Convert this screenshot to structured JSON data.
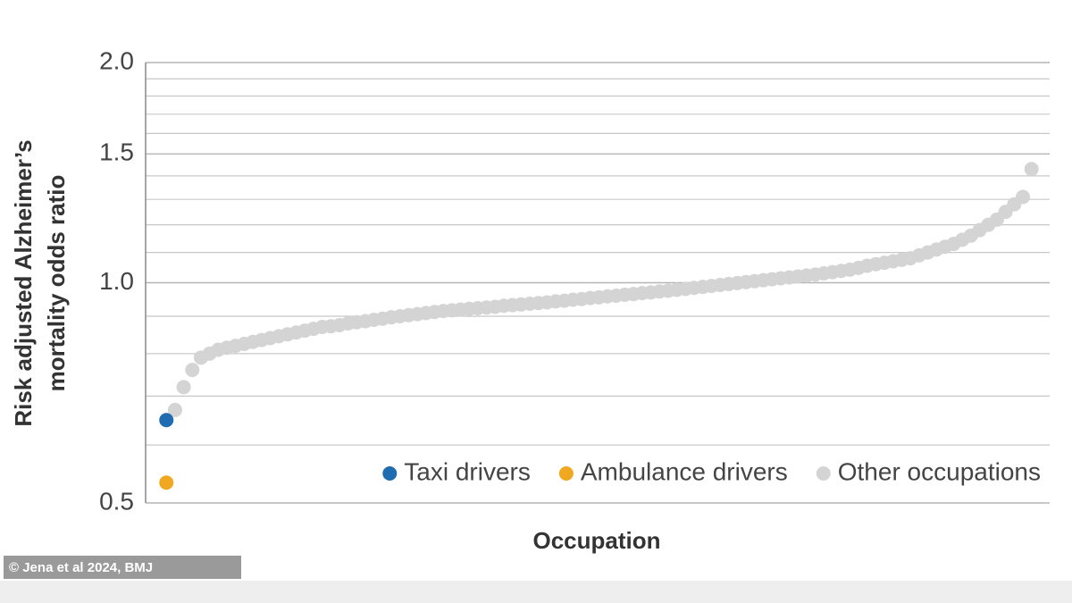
{
  "chart_data": {
    "type": "scatter",
    "x_label": "Occupation",
    "y_label": [
      "Risk adjusted Alzheimer’s",
      "mortality odds ratio"
    ],
    "source": "© Jena et al 2024, BMJ",
    "log_scale_y": true,
    "grid": true,
    "legend_position": "bottom-right",
    "xlim": [
      -1.4,
      103.1
    ],
    "ylim": [
      0.5,
      2.0
    ],
    "yticks": [
      {
        "value": 0.5,
        "label": "0.5"
      },
      {
        "value": 1,
        "label": "1.0"
      },
      {
        "value": 1.5,
        "label": "1.5"
      },
      {
        "value": 2,
        "label": "2.0"
      }
    ],
    "ygrid": [
      0.6,
      0.7,
      0.8,
      0.9,
      1.1,
      1.2,
      1.3,
      1.4,
      1.6,
      1.7,
      1.8,
      1.9
    ],
    "series": [
      {
        "name": "Taxi drivers",
        "color": "#1f6db0",
        "x": [
          1
        ],
        "values": [
          0.649
        ]
      },
      {
        "name": "Ambulance drivers",
        "color": "#f0a820",
        "x": [
          1
        ],
        "values": [
          0.533
        ]
      },
      {
        "name": "Other occupations",
        "color": "#d4d4d4",
        "x": [
          2,
          3,
          4,
          5,
          6,
          7,
          8,
          9,
          10,
          11,
          12,
          13,
          14,
          15,
          16,
          17,
          18,
          19,
          20,
          21,
          22,
          23,
          24,
          25,
          26,
          27,
          28,
          29,
          30,
          31,
          32,
          33,
          34,
          35,
          36,
          37,
          38,
          39,
          40,
          41,
          42,
          43,
          44,
          45,
          46,
          47,
          48,
          49,
          50,
          51,
          52,
          53,
          54,
          55,
          56,
          57,
          58,
          59,
          60,
          61,
          62,
          63,
          64,
          65,
          66,
          67,
          68,
          69,
          70,
          71,
          72,
          73,
          74,
          75,
          76,
          77,
          78,
          79,
          80,
          81,
          82,
          83,
          84,
          85,
          86,
          87,
          88,
          89,
          90,
          91,
          92,
          93,
          94,
          95,
          96,
          97,
          98,
          99,
          100,
          101
        ],
        "values": [
          0.67,
          0.72,
          0.76,
          0.79,
          0.8,
          0.81,
          0.815,
          0.82,
          0.825,
          0.83,
          0.835,
          0.84,
          0.845,
          0.85,
          0.855,
          0.86,
          0.865,
          0.87,
          0.872,
          0.875,
          0.88,
          0.883,
          0.886,
          0.89,
          0.893,
          0.897,
          0.9,
          0.903,
          0.906,
          0.909,
          0.912,
          0.915,
          0.917,
          0.919,
          0.921,
          0.923,
          0.925,
          0.927,
          0.93,
          0.932,
          0.934,
          0.936,
          0.938,
          0.94,
          0.943,
          0.945,
          0.948,
          0.95,
          0.953,
          0.955,
          0.958,
          0.96,
          0.963,
          0.965,
          0.968,
          0.97,
          0.973,
          0.975,
          0.978,
          0.981,
          0.984,
          0.987,
          0.99,
          0.993,
          0.996,
          0.999,
          1.002,
          1.005,
          1.008,
          1.011,
          1.014,
          1.017,
          1.02,
          1.023,
          1.026,
          1.03,
          1.034,
          1.038,
          1.042,
          1.048,
          1.055,
          1.06,
          1.065,
          1.07,
          1.075,
          1.08,
          1.09,
          1.1,
          1.11,
          1.12,
          1.13,
          1.145,
          1.16,
          1.18,
          1.2,
          1.22,
          1.25,
          1.28,
          1.31,
          1.43
        ]
      }
    ]
  }
}
